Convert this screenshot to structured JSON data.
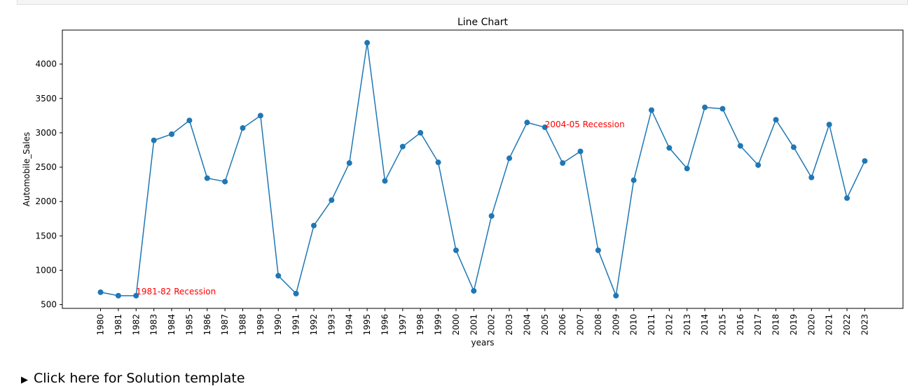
{
  "chart_data": {
    "type": "line",
    "title": "Line Chart",
    "xlabel": "years",
    "ylabel": "Automobile_Sales",
    "x": [
      1980,
      1981,
      1982,
      1983,
      1984,
      1985,
      1986,
      1987,
      1988,
      1989,
      1990,
      1991,
      1992,
      1993,
      1994,
      1995,
      1996,
      1997,
      1998,
      1999,
      2000,
      2001,
      2002,
      2003,
      2004,
      2005,
      2006,
      2007,
      2008,
      2009,
      2010,
      2011,
      2012,
      2013,
      2014,
      2015,
      2016,
      2017,
      2018,
      2019,
      2020,
      2021,
      2022,
      2023
    ],
    "x_tick_labels": [
      "1980",
      "1981",
      "1982",
      "1983",
      "1984",
      "1985",
      "1986",
      "1987",
      "1988",
      "1989",
      "1990",
      "1991",
      "1992",
      "1993",
      "1994",
      "1995",
      "1996",
      "1997",
      "1998",
      "1999",
      "2000",
      "2001",
      "2002",
      "2003",
      "2004",
      "2005",
      "2006",
      "2007",
      "2008",
      "2009",
      "2010",
      "2011",
      "2012",
      "2013",
      "2014",
      "2015",
      "2016",
      "2017",
      "2018",
      "2019",
      "2020",
      "2021",
      "2022",
      "2023"
    ],
    "series": [
      {
        "values": [
          680,
          630,
          630,
          2890,
          2980,
          3180,
          2340,
          2290,
          3070,
          3250,
          920,
          660,
          1650,
          2020,
          2560,
          4310,
          2300,
          2800,
          3000,
          2570,
          1290,
          700,
          1790,
          2630,
          3150,
          3080,
          2560,
          2730,
          1290,
          630,
          2310,
          3330,
          2780,
          2480,
          3370,
          3350,
          2810,
          2530,
          3190,
          2790,
          2350,
          3120,
          2050,
          2590
        ],
        "color": "#1f77b4"
      }
    ],
    "yticks": [
      500,
      1000,
      1500,
      2000,
      2500,
      3000,
      3500,
      4000
    ],
    "y_tick_labels": [
      "500",
      "1000",
      "1500",
      "2000",
      "2500",
      "3000",
      "3500",
      "4000"
    ],
    "xlim": [
      1977.85,
      2025.15
    ],
    "ylim": [
      445,
      4495
    ],
    "grid": false,
    "annotations": [
      {
        "text": "1981-82 Recession",
        "x": 1982,
        "y": 650,
        "color": "#ff0000"
      },
      {
        "text": "2004-05 Recession",
        "x": 2005,
        "y": 3080,
        "color": "#ff0000"
      }
    ]
  },
  "footer": {
    "toggle_label": "Click here for Solution template",
    "toggle_icon": "triangle-right-icon"
  }
}
